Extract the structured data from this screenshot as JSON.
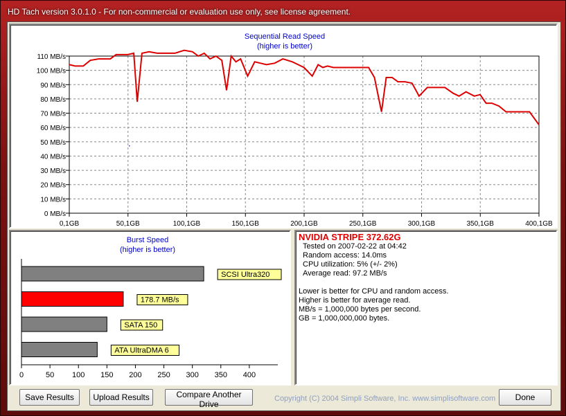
{
  "window": {
    "title": "HD Tach version 3.0.1.0  - For non-commercial or evaluation use only, see license agreement."
  },
  "main_chart": {
    "title": "Sequential Read Speed",
    "subtitle": "(higher is better)",
    "y_ticks": [
      "0 MB/s",
      "10 MB/s",
      "20 MB/s",
      "30 MB/s",
      "40 MB/s",
      "50 MB/s",
      "60 MB/s",
      "70 MB/s",
      "80 MB/s",
      "90 MB/s",
      "100 MB/s",
      "110 MB/s"
    ],
    "x_ticks": [
      "0,1GB",
      "50,1GB",
      "100,1GB",
      "150,1GB",
      "200,1GB",
      "250,1GB",
      "300,1GB",
      "350,1GB",
      "400,1GB"
    ]
  },
  "burst_chart": {
    "title": "Burst Speed",
    "subtitle": "(higher is better)",
    "x_ticks": [
      "0",
      "50",
      "100",
      "150",
      "200",
      "250",
      "300",
      "350",
      "400"
    ]
  },
  "info": {
    "drive_name": "NVIDIA STRIPE 372.62G",
    "tested_on": "Tested on 2007-02-22 at 04:42",
    "random_access": "Random access: 14.0ms",
    "cpu": "CPU utilization: 5% (+/- 2%)",
    "avg_read": "Average read: 97.2 MB/s",
    "note1": "Lower is better for CPU and random access.",
    "note2": "Higher is better for average read.",
    "note3": "MB/s = 1,000,000 bytes per second.",
    "note4": "GB = 1,000,000,000 bytes."
  },
  "buttons": {
    "save": "Save Results",
    "upload": "Upload Results",
    "compare": "Compare Another Drive",
    "done": "Done"
  },
  "copyright": "Copyright (C) 2004 Simpli Software, Inc. www.simplisoftware.com",
  "colors": {
    "accent": "#e00000",
    "reference_bar": "#808080",
    "label_bg": "#ffff99"
  },
  "chart_data": [
    {
      "type": "line",
      "title": "Sequential Read Speed",
      "subtitle": "(higher is better)",
      "xlabel": "",
      "ylabel": "",
      "xlim": [
        0.1,
        400.1
      ],
      "ylim": [
        0,
        110
      ],
      "grid": true,
      "series": [
        {
          "x": [
            0.1,
            5,
            12,
            18,
            25,
            35,
            40,
            50,
            55,
            58,
            62,
            68,
            75,
            90,
            98,
            105,
            110,
            115,
            120,
            125,
            130,
            134,
            138,
            142,
            146,
            152,
            158,
            163,
            168,
            175,
            182,
            190,
            195,
            200,
            207,
            212,
            216,
            220,
            225,
            232,
            240,
            255,
            260,
            266,
            270,
            275,
            280,
            286,
            292,
            298,
            305,
            312,
            320,
            327,
            332,
            338,
            345,
            350,
            355,
            360,
            366,
            372,
            378,
            385,
            392,
            400
          ],
          "y": [
            104,
            103,
            103,
            107,
            108,
            108,
            111,
            111,
            112,
            78,
            112,
            113,
            112,
            112,
            114,
            113,
            110,
            112,
            108,
            110,
            107,
            86,
            110,
            106,
            108,
            96,
            106,
            105,
            104,
            105,
            108,
            106,
            104,
            102,
            96,
            104,
            102,
            103,
            102,
            102,
            102,
            102,
            95,
            71,
            95,
            95,
            92,
            92,
            91,
            82,
            88,
            88,
            88,
            84,
            82,
            85,
            82,
            83,
            77,
            77,
            75,
            71,
            71,
            71,
            71,
            62
          ]
        }
      ]
    },
    {
      "type": "bar",
      "title": "Burst Speed",
      "subtitle": "(higher is better)",
      "orientation": "horizontal",
      "xlim": [
        0,
        450
      ],
      "categories": [
        "SCSI Ultra320",
        "178.7 MB/s",
        "SATA 150",
        "ATA UltraDMA 6"
      ],
      "values": [
        320,
        178.7,
        150,
        133
      ],
      "colors": [
        "#808080",
        "#ff0000",
        "#808080",
        "#808080"
      ]
    }
  ]
}
